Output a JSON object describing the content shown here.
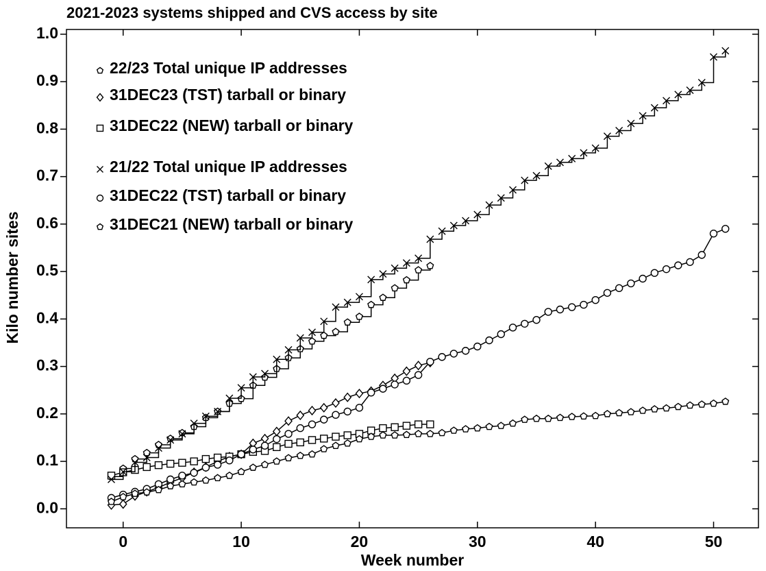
{
  "chart_data": {
    "type": "line",
    "title": "2021-2023 systems shipped and CVS access by site",
    "xlabel": "Week number",
    "ylabel": "Kilo number sites",
    "xlim": [
      -4.8,
      53.8
    ],
    "ylim": [
      -0.04,
      1.01
    ],
    "xticks": [
      0,
      10,
      20,
      30,
      40,
      50
    ],
    "yticks": [
      {
        "value": 0,
        "label": "0.0"
      },
      0.1,
      0.2,
      0.3,
      0.4,
      0.5,
      0.6,
      0.7,
      0.8,
      0.9,
      {
        "value": 1,
        "label": "1.0"
      }
    ],
    "series": [
      {
        "name": "22/23 Total unique IP addresses",
        "color": "#000000",
        "marker": "pentagon",
        "step": true,
        "x": [
          -1,
          0,
          1,
          2,
          3,
          4,
          5,
          6,
          7,
          8,
          9,
          10,
          11,
          12,
          13,
          14,
          15,
          16,
          17,
          18,
          19,
          20,
          21,
          22,
          23,
          24,
          25,
          26
        ],
        "values": [
          0.068,
          0.085,
          0.105,
          0.118,
          0.135,
          0.148,
          0.16,
          0.173,
          0.192,
          0.205,
          0.222,
          0.232,
          0.26,
          0.277,
          0.295,
          0.318,
          0.337,
          0.353,
          0.365,
          0.373,
          0.393,
          0.405,
          0.43,
          0.445,
          0.465,
          0.482,
          0.503,
          0.512
        ]
      },
      {
        "name": "31DEC23 (TST) tarball or binary",
        "color": "#000000",
        "marker": "diamond",
        "step": false,
        "x": [
          -1,
          0,
          1,
          2,
          3,
          4,
          5,
          6,
          7,
          8,
          9,
          10,
          11,
          12,
          13,
          14,
          15,
          16,
          17,
          18,
          19,
          20,
          21,
          22,
          23,
          24,
          25,
          26
        ],
        "values": [
          0.008,
          0.01,
          0.027,
          0.036,
          0.045,
          0.056,
          0.065,
          0.077,
          0.088,
          0.1,
          0.11,
          0.115,
          0.138,
          0.148,
          0.163,
          0.185,
          0.197,
          0.207,
          0.213,
          0.223,
          0.235,
          0.243,
          0.248,
          0.26,
          0.275,
          0.29,
          0.302,
          0.308
        ]
      },
      {
        "name": "31DEC22 (NEW) tarball or binary",
        "color": "#000000",
        "marker": "square",
        "step": false,
        "x": [
          -1,
          0,
          1,
          2,
          3,
          4,
          5,
          6,
          7,
          8,
          9,
          10,
          11,
          12,
          13,
          14,
          15,
          16,
          17,
          18,
          19,
          20,
          21,
          22,
          23,
          24,
          25,
          26
        ],
        "values": [
          0.07,
          0.077,
          0.082,
          0.088,
          0.092,
          0.095,
          0.097,
          0.1,
          0.105,
          0.108,
          0.11,
          0.115,
          0.12,
          0.122,
          0.13,
          0.137,
          0.14,
          0.145,
          0.148,
          0.152,
          0.155,
          0.158,
          0.165,
          0.17,
          0.172,
          0.175,
          0.178,
          0.178
        ]
      },
      {
        "name": "21/22 Total unique IP addresses",
        "color": "#000000",
        "marker": "x",
        "step": true,
        "x": [
          -1,
          0,
          1,
          2,
          3,
          4,
          5,
          6,
          7,
          8,
          9,
          10,
          11,
          12,
          13,
          14,
          15,
          16,
          17,
          18,
          19,
          20,
          21,
          22,
          23,
          24,
          25,
          26,
          27,
          28,
          29,
          30,
          31,
          32,
          33,
          34,
          35,
          36,
          37,
          38,
          39,
          40,
          41,
          42,
          43,
          44,
          45,
          46,
          47,
          48,
          49,
          50,
          51
        ],
        "values": [
          0.062,
          0.078,
          0.098,
          0.108,
          0.128,
          0.145,
          0.158,
          0.18,
          0.195,
          0.205,
          0.233,
          0.255,
          0.278,
          0.285,
          0.315,
          0.335,
          0.36,
          0.372,
          0.395,
          0.425,
          0.435,
          0.447,
          0.483,
          0.495,
          0.507,
          0.518,
          0.528,
          0.568,
          0.585,
          0.597,
          0.607,
          0.62,
          0.64,
          0.655,
          0.672,
          0.692,
          0.702,
          0.722,
          0.73,
          0.738,
          0.75,
          0.76,
          0.785,
          0.797,
          0.812,
          0.828,
          0.845,
          0.86,
          0.873,
          0.882,
          0.898,
          0.952,
          0.965
        ]
      },
      {
        "name": "31DEC22 (TST) tarball or binary",
        "color": "#000000",
        "marker": "circle",
        "step": false,
        "x": [
          -1,
          0,
          1,
          2,
          3,
          4,
          5,
          6,
          7,
          8,
          9,
          10,
          11,
          12,
          13,
          14,
          15,
          16,
          17,
          18,
          19,
          20,
          21,
          22,
          23,
          24,
          25,
          26,
          27,
          28,
          29,
          30,
          31,
          32,
          33,
          34,
          35,
          36,
          37,
          38,
          39,
          40,
          41,
          42,
          43,
          44,
          45,
          46,
          47,
          48,
          49,
          50,
          51
        ],
        "values": [
          0.023,
          0.03,
          0.036,
          0.042,
          0.052,
          0.062,
          0.07,
          0.076,
          0.087,
          0.093,
          0.102,
          0.115,
          0.125,
          0.133,
          0.147,
          0.158,
          0.17,
          0.178,
          0.188,
          0.198,
          0.205,
          0.213,
          0.245,
          0.253,
          0.262,
          0.27,
          0.282,
          0.31,
          0.32,
          0.327,
          0.333,
          0.342,
          0.355,
          0.368,
          0.382,
          0.39,
          0.398,
          0.415,
          0.42,
          0.425,
          0.43,
          0.44,
          0.455,
          0.465,
          0.475,
          0.485,
          0.497,
          0.505,
          0.513,
          0.52,
          0.535,
          0.58,
          0.59
        ]
      },
      {
        "name": "31DEC21 (NEW) tarball or binary",
        "color": "#000000",
        "marker": "pentagon",
        "step": false,
        "x": [
          -1,
          0,
          1,
          2,
          3,
          4,
          5,
          6,
          7,
          8,
          9,
          10,
          11,
          12,
          13,
          14,
          15,
          16,
          17,
          18,
          19,
          20,
          21,
          22,
          23,
          24,
          25,
          26,
          27,
          28,
          29,
          30,
          31,
          32,
          33,
          34,
          35,
          36,
          37,
          38,
          39,
          40,
          41,
          42,
          43,
          44,
          45,
          46,
          47,
          48,
          49,
          50,
          51
        ],
        "values": [
          0.015,
          0.025,
          0.032,
          0.035,
          0.04,
          0.048,
          0.052,
          0.056,
          0.06,
          0.065,
          0.07,
          0.078,
          0.087,
          0.093,
          0.1,
          0.107,
          0.112,
          0.115,
          0.126,
          0.133,
          0.138,
          0.147,
          0.152,
          0.155,
          0.155,
          0.156,
          0.158,
          0.158,
          0.16,
          0.165,
          0.168,
          0.17,
          0.173,
          0.175,
          0.18,
          0.188,
          0.19,
          0.19,
          0.192,
          0.194,
          0.195,
          0.196,
          0.2,
          0.202,
          0.204,
          0.207,
          0.21,
          0.212,
          0.215,
          0.218,
          0.22,
          0.222,
          0.226
        ]
      }
    ]
  }
}
